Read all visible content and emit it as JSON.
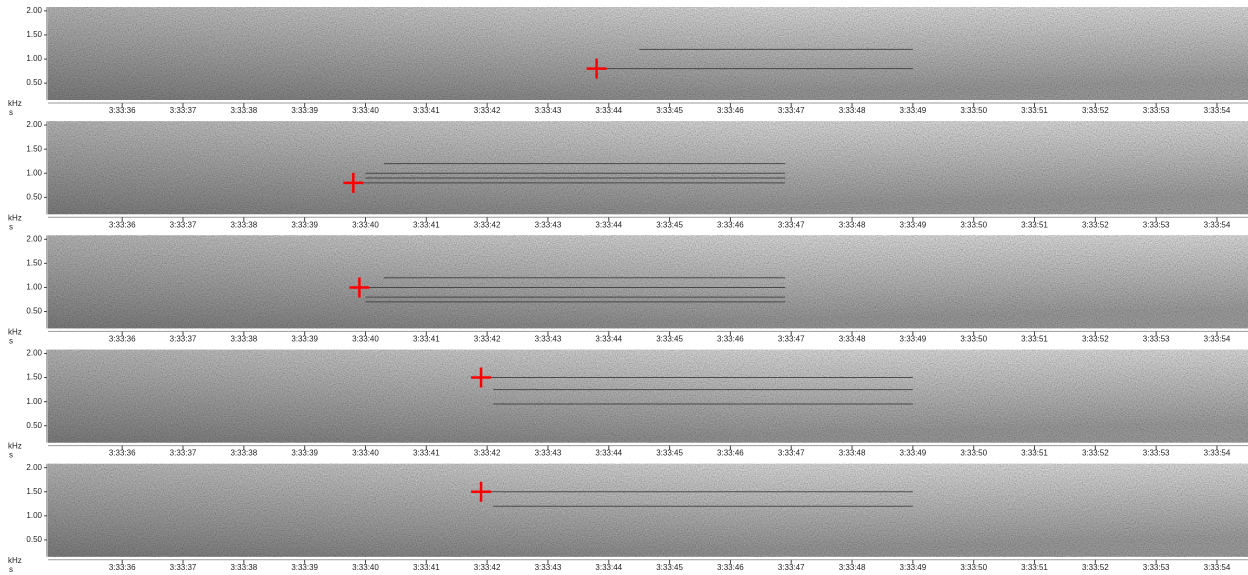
{
  "chart_data": [
    {
      "type": "spectrogram",
      "x_label": "s",
      "y_label": "kHz",
      "xlim": [
        12814.78,
        12834.51
      ],
      "ylim": [
        0.15,
        2.08
      ],
      "xticks": [
        {
          "value": 12816,
          "label": "3:33:36"
        },
        {
          "value": 12817,
          "label": "3:33:37"
        },
        {
          "value": 12818,
          "label": "3:33:38"
        },
        {
          "value": 12819,
          "label": "3:33:39"
        },
        {
          "value": 12820,
          "label": "3:33:40"
        },
        {
          "value": 12821,
          "label": "3:33:41"
        },
        {
          "value": 12822,
          "label": "3:33:42"
        },
        {
          "value": 12823,
          "label": "3:33:43"
        },
        {
          "value": 12824,
          "label": "3:33:44"
        },
        {
          "value": 12825,
          "label": "3:33:45"
        },
        {
          "value": 12826,
          "label": "3:33:46"
        },
        {
          "value": 12827,
          "label": "3:33:47"
        },
        {
          "value": 12828,
          "label": "3:33:48"
        },
        {
          "value": 12829,
          "label": "3:33:49"
        },
        {
          "value": 12830,
          "label": "3:33:50"
        },
        {
          "value": 12831,
          "label": "3:33:51"
        },
        {
          "value": 12832,
          "label": "3:33:52"
        },
        {
          "value": 12833,
          "label": "3:33:53"
        },
        {
          "value": 12834,
          "label": "3:33:54"
        }
      ],
      "yticks": [
        {
          "value": 0.5,
          "label": "0.50"
        },
        {
          "value": 1,
          "label": "1.00"
        },
        {
          "value": 1.5,
          "label": "1.50"
        },
        {
          "value": 2,
          "label": "2.00"
        }
      ],
      "marker": {
        "x": 12823.8,
        "y": 0.8,
        "color": "#ff0000"
      },
      "tracks": [
        {
          "y": 0.8,
          "x": [
            12823.8,
            12829.0
          ]
        },
        {
          "y": 1.2,
          "x": [
            12824.5,
            12829.0
          ]
        }
      ]
    },
    {
      "type": "spectrogram",
      "x_label": "s",
      "y_label": "kHz",
      "xlim": [
        12814.78,
        12834.51
      ],
      "ylim": [
        0.15,
        2.08
      ],
      "xticks": [
        {
          "value": 12816,
          "label": "3:33:36"
        },
        {
          "value": 12817,
          "label": "3:33:37"
        },
        {
          "value": 12818,
          "label": "3:33:38"
        },
        {
          "value": 12819,
          "label": "3:33:39"
        },
        {
          "value": 12820,
          "label": "3:33:40"
        },
        {
          "value": 12821,
          "label": "3:33:41"
        },
        {
          "value": 12822,
          "label": "3:33:42"
        },
        {
          "value": 12823,
          "label": "3:33:43"
        },
        {
          "value": 12824,
          "label": "3:33:44"
        },
        {
          "value": 12825,
          "label": "3:33:45"
        },
        {
          "value": 12826,
          "label": "3:33:46"
        },
        {
          "value": 12827,
          "label": "3:33:47"
        },
        {
          "value": 12828,
          "label": "3:33:48"
        },
        {
          "value": 12829,
          "label": "3:33:49"
        },
        {
          "value": 12830,
          "label": "3:33:50"
        },
        {
          "value": 12831,
          "label": "3:33:51"
        },
        {
          "value": 12832,
          "label": "3:33:52"
        },
        {
          "value": 12833,
          "label": "3:33:53"
        },
        {
          "value": 12834,
          "label": "3:33:54"
        }
      ],
      "yticks": [
        {
          "value": 0.5,
          "label": "0.50"
        },
        {
          "value": 1,
          "label": "1.00"
        },
        {
          "value": 1.5,
          "label": "1.50"
        },
        {
          "value": 2,
          "label": "2.00"
        }
      ],
      "marker": {
        "x": 12819.8,
        "y": 0.8,
        "color": "#ff0000"
      },
      "tracks": [
        {
          "y": 0.8,
          "x": [
            12819.8,
            12826.9
          ]
        },
        {
          "y": 0.9,
          "x": [
            12820.0,
            12826.9
          ]
        },
        {
          "y": 1.0,
          "x": [
            12820.0,
            12826.9
          ]
        },
        {
          "y": 1.2,
          "x": [
            12820.3,
            12826.9
          ]
        }
      ]
    },
    {
      "type": "spectrogram",
      "x_label": "s",
      "y_label": "kHz",
      "xlim": [
        12814.78,
        12834.51
      ],
      "ylim": [
        0.15,
        2.08
      ],
      "xticks": [
        {
          "value": 12816,
          "label": "3:33:36"
        },
        {
          "value": 12817,
          "label": "3:33:37"
        },
        {
          "value": 12818,
          "label": "3:33:38"
        },
        {
          "value": 12819,
          "label": "3:33:39"
        },
        {
          "value": 12820,
          "label": "3:33:40"
        },
        {
          "value": 12821,
          "label": "3:33:41"
        },
        {
          "value": 12822,
          "label": "3:33:42"
        },
        {
          "value": 12823,
          "label": "3:33:43"
        },
        {
          "value": 12824,
          "label": "3:33:44"
        },
        {
          "value": 12825,
          "label": "3:33:45"
        },
        {
          "value": 12826,
          "label": "3:33:46"
        },
        {
          "value": 12827,
          "label": "3:33:47"
        },
        {
          "value": 12828,
          "label": "3:33:48"
        },
        {
          "value": 12829,
          "label": "3:33:49"
        },
        {
          "value": 12830,
          "label": "3:33:50"
        },
        {
          "value": 12831,
          "label": "3:33:51"
        },
        {
          "value": 12832,
          "label": "3:33:52"
        },
        {
          "value": 12833,
          "label": "3:33:53"
        },
        {
          "value": 12834,
          "label": "3:33:54"
        }
      ],
      "yticks": [
        {
          "value": 0.5,
          "label": "0.50"
        },
        {
          "value": 1,
          "label": "1.00"
        },
        {
          "value": 1.5,
          "label": "1.50"
        },
        {
          "value": 2,
          "label": "2.00"
        }
      ],
      "marker": {
        "x": 12819.9,
        "y": 1.0,
        "color": "#ff0000"
      },
      "tracks": [
        {
          "y": 0.7,
          "x": [
            12820.0,
            12826.9
          ]
        },
        {
          "y": 0.8,
          "x": [
            12820.0,
            12826.9
          ]
        },
        {
          "y": 1.0,
          "x": [
            12819.9,
            12826.9
          ]
        },
        {
          "y": 1.2,
          "x": [
            12820.3,
            12826.9
          ]
        }
      ]
    },
    {
      "type": "spectrogram",
      "x_label": "s",
      "y_label": "kHz",
      "xlim": [
        12814.78,
        12834.51
      ],
      "ylim": [
        0.15,
        2.08
      ],
      "xticks": [
        {
          "value": 12816,
          "label": "3:33:36"
        },
        {
          "value": 12817,
          "label": "3:33:37"
        },
        {
          "value": 12818,
          "label": "3:33:38"
        },
        {
          "value": 12819,
          "label": "3:33:39"
        },
        {
          "value": 12820,
          "label": "3:33:40"
        },
        {
          "value": 12821,
          "label": "3:33:41"
        },
        {
          "value": 12822,
          "label": "3:33:42"
        },
        {
          "value": 12823,
          "label": "3:33:43"
        },
        {
          "value": 12824,
          "label": "3:33:44"
        },
        {
          "value": 12825,
          "label": "3:33:45"
        },
        {
          "value": 12826,
          "label": "3:33:46"
        },
        {
          "value": 12827,
          "label": "3:33:47"
        },
        {
          "value": 12828,
          "label": "3:33:48"
        },
        {
          "value": 12829,
          "label": "3:33:49"
        },
        {
          "value": 12830,
          "label": "3:33:50"
        },
        {
          "value": 12831,
          "label": "3:33:51"
        },
        {
          "value": 12832,
          "label": "3:33:52"
        },
        {
          "value": 12833,
          "label": "3:33:53"
        },
        {
          "value": 12834,
          "label": "3:33:54"
        }
      ],
      "yticks": [
        {
          "value": 0.5,
          "label": "0.50"
        },
        {
          "value": 1,
          "label": "1.00"
        },
        {
          "value": 1.5,
          "label": "1.50"
        },
        {
          "value": 2,
          "label": "2.00"
        }
      ],
      "marker": {
        "x": 12821.9,
        "y": 1.5,
        "color": "#ff0000"
      },
      "tracks": [
        {
          "y": 1.5,
          "x": [
            12821.9,
            12829.0
          ]
        },
        {
          "y": 1.25,
          "x": [
            12822.1,
            12829.0
          ]
        },
        {
          "y": 0.95,
          "x": [
            12822.1,
            12829.0
          ]
        }
      ]
    },
    {
      "type": "spectrogram",
      "x_label": "s",
      "y_label": "kHz",
      "xlim": [
        12814.78,
        12834.51
      ],
      "ylim": [
        0.15,
        2.08
      ],
      "xticks": [
        {
          "value": 12816,
          "label": "3:33:36"
        },
        {
          "value": 12817,
          "label": "3:33:37"
        },
        {
          "value": 12818,
          "label": "3:33:38"
        },
        {
          "value": 12819,
          "label": "3:33:39"
        },
        {
          "value": 12820,
          "label": "3:33:40"
        },
        {
          "value": 12821,
          "label": "3:33:41"
        },
        {
          "value": 12822,
          "label": "3:33:42"
        },
        {
          "value": 12823,
          "label": "3:33:43"
        },
        {
          "value": 12824,
          "label": "3:33:44"
        },
        {
          "value": 12825,
          "label": "3:33:45"
        },
        {
          "value": 12826,
          "label": "3:33:46"
        },
        {
          "value": 12827,
          "label": "3:33:47"
        },
        {
          "value": 12828,
          "label": "3:33:48"
        },
        {
          "value": 12829,
          "label": "3:33:49"
        },
        {
          "value": 12830,
          "label": "3:33:50"
        },
        {
          "value": 12831,
          "label": "3:33:51"
        },
        {
          "value": 12832,
          "label": "3:33:52"
        },
        {
          "value": 12833,
          "label": "3:33:53"
        },
        {
          "value": 12834,
          "label": "3:33:54"
        }
      ],
      "yticks": [
        {
          "value": 0.5,
          "label": "0.50"
        },
        {
          "value": 1,
          "label": "1.00"
        },
        {
          "value": 1.5,
          "label": "1.50"
        },
        {
          "value": 2,
          "label": "2.00"
        }
      ],
      "marker": {
        "x": 12821.9,
        "y": 1.5,
        "color": "#ff0000"
      },
      "tracks": [
        {
          "y": 1.5,
          "x": [
            12821.9,
            12829.0
          ]
        },
        {
          "y": 1.2,
          "x": [
            12822.1,
            12829.0
          ]
        }
      ]
    }
  ]
}
